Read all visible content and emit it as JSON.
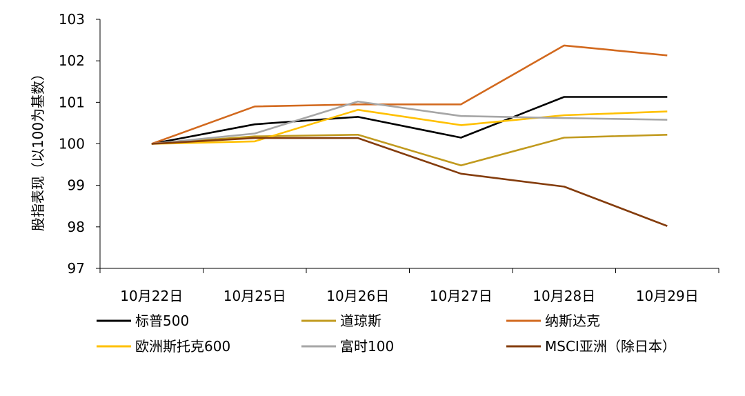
{
  "chart_data": {
    "type": "line",
    "title": "",
    "xlabel": "",
    "ylabel": "股指表现（以100为基数）",
    "ylim": [
      97,
      103
    ],
    "yticks": [
      97,
      98,
      99,
      100,
      101,
      102,
      103
    ],
    "grid": false,
    "legend_position": "bottom",
    "categories": [
      "10月22日",
      "10月25日",
      "10月26日",
      "10月27日",
      "10月28日",
      "10月29日"
    ],
    "series": [
      {
        "name": "标普500",
        "color": "#000000",
        "values": [
          100.0,
          100.47,
          100.65,
          100.15,
          101.13,
          101.13
        ]
      },
      {
        "name": "道琼斯",
        "color": "#C19A1E",
        "values": [
          100.0,
          100.18,
          100.22,
          99.48,
          100.15,
          100.22
        ]
      },
      {
        "name": "纳斯达克",
        "color": "#D2691E",
        "values": [
          100.0,
          100.9,
          100.95,
          100.95,
          102.37,
          102.13
        ]
      },
      {
        "name": "欧洲斯托克600",
        "color": "#FFC000",
        "values": [
          100.0,
          100.06,
          100.82,
          100.45,
          100.69,
          100.78
        ]
      },
      {
        "name": "富时100",
        "color": "#A6A6A6",
        "values": [
          100.0,
          100.25,
          101.02,
          100.67,
          100.62,
          100.58
        ]
      },
      {
        "name": "MSCI亚洲（除日本）",
        "color": "#843C0C",
        "values": [
          100.0,
          100.14,
          100.14,
          99.28,
          98.97,
          98.02
        ]
      }
    ]
  }
}
